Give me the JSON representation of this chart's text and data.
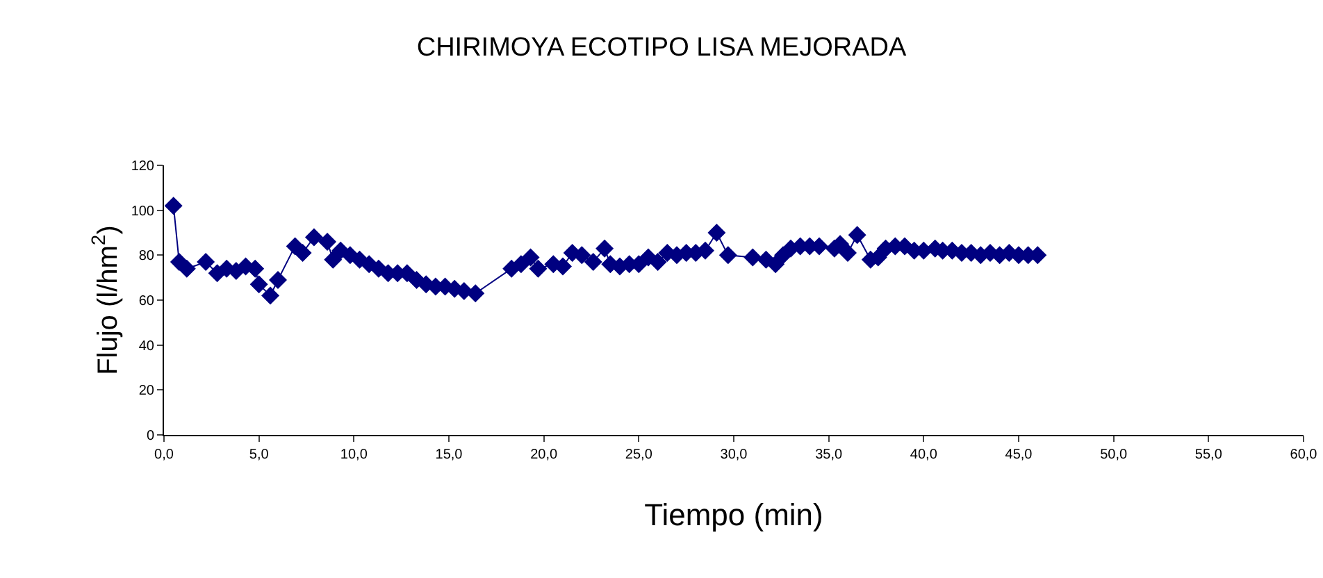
{
  "chart_data": {
    "type": "line",
    "title": "CHIRIMOYA ECOTIPO LISA MEJORADA",
    "xlabel": "Tiempo (min)",
    "ylabel": "Flujo (l/hm$^{2}$)",
    "x": [
      0.5,
      0.8,
      1.2,
      2.2,
      2.8,
      3.3,
      3.8,
      4.3,
      4.8,
      5.0,
      5.6,
      6.0,
      6.9,
      7.3,
      7.9,
      8.6,
      8.9,
      9.3,
      9.8,
      10.3,
      10.8,
      11.3,
      11.8,
      12.3,
      12.8,
      13.3,
      13.8,
      14.3,
      14.8,
      15.3,
      15.8,
      16.4,
      18.3,
      18.8,
      19.3,
      19.7,
      20.5,
      21.0,
      21.5,
      22.0,
      22.6,
      23.2,
      23.5,
      24.0,
      24.5,
      25.0,
      25.5,
      26.0,
      26.5,
      27.0,
      27.5,
      28.0,
      28.5,
      29.1,
      29.7,
      31.0,
      31.7,
      32.2,
      32.6,
      33.0,
      33.5,
      34.0,
      34.5,
      35.3,
      35.6,
      36.0,
      36.5,
      37.2,
      37.6,
      38.0,
      38.5,
      39.0,
      39.5,
      40.0,
      40.6,
      41.0,
      41.5,
      42.0,
      42.5,
      43.0,
      43.5,
      44.0,
      44.5,
      45.0,
      45.5,
      46.0
    ],
    "series": [
      {
        "color": "#000080",
        "values": [
          102,
          77,
          74,
          77,
          72,
          74,
          73,
          75,
          74,
          67,
          62,
          69,
          84,
          81,
          88,
          86,
          78,
          82,
          80,
          78,
          76,
          74,
          72,
          72,
          72,
          69,
          67,
          66,
          66,
          65,
          64,
          63,
          74,
          76,
          79,
          74,
          76,
          75,
          81,
          80,
          77,
          83,
          76,
          75,
          76,
          76,
          79,
          77,
          81,
          80,
          81,
          81,
          82,
          90,
          80,
          79,
          78,
          76,
          80,
          83,
          84,
          84,
          84,
          83,
          85,
          81,
          89,
          78,
          79,
          83,
          84,
          84,
          82,
          82,
          83,
          82,
          82,
          81,
          81,
          80,
          81,
          80,
          81,
          80,
          80,
          80
        ]
      }
    ],
    "xlim": [
      0,
      60
    ],
    "ylim": [
      0,
      120
    ],
    "xticks": [
      {
        "value": 0,
        "label": "0,0"
      },
      {
        "value": 5,
        "label": "5,0"
      },
      {
        "value": 10,
        "label": "10,0"
      },
      {
        "value": 15,
        "label": "15,0"
      },
      {
        "value": 20,
        "label": "20,0"
      },
      {
        "value": 25,
        "label": "25,0"
      },
      {
        "value": 30,
        "label": "30,0"
      },
      {
        "value": 35,
        "label": "35,0"
      },
      {
        "value": 40,
        "label": "40,0"
      },
      {
        "value": 45,
        "label": "45,0"
      },
      {
        "value": 50,
        "label": "50,0"
      },
      {
        "value": 55,
        "label": "55,0"
      },
      {
        "value": 60,
        "label": "60,0"
      }
    ],
    "yticks": [
      0,
      20,
      40,
      60,
      80,
      100,
      120
    ],
    "marker": "diamond",
    "line_style": "solid"
  }
}
